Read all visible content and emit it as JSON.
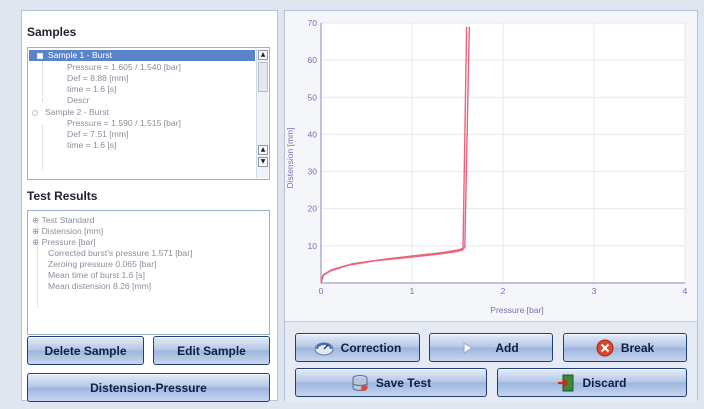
{
  "samples": {
    "title": "Samples",
    "rows": [
      "Sample 1 - Burst",
      "Pressure = 1.605 / 1.540 [bar]",
      "Def = 8.88 [mm]",
      "time = 1.6 [s]",
      "Descr",
      "Sample 2 - Burst",
      "Pressure = 1.590 / 1.515 [bar]",
      "Def = 7.51 [mm]",
      "time = 1.6 [s]"
    ]
  },
  "results": {
    "title": "Test Results",
    "rows": [
      "Test Standard",
      "Distension [mm]",
      "Pressure [bar]",
      "Corrected burst's pressure 1.571 [bar]",
      "Zeroing pressure 0.065 [bar]",
      "Mean time of burst 1.6 [s]",
      "Mean distension 8.26 [mm]"
    ]
  },
  "buttons": {
    "delete_sample": "Delete Sample",
    "edit_sample": "Edit Sample",
    "distension_pressure": "Distension-Pressure",
    "correction": "Correction",
    "add": "Add",
    "break": "Break",
    "save_test": "Save Test",
    "discard": "Discard"
  },
  "icons": {
    "correction": "gauge-icon",
    "add": "play-arrow-icon",
    "break": "stop-x-icon",
    "save_test": "database-icon",
    "discard": "exit-door-icon"
  },
  "colors": {
    "selection": "#5a83c9",
    "curve": "#e8647f",
    "button_border": "#1e3f78",
    "axis_label": "#7a6fb3"
  },
  "chart_data": {
    "type": "line",
    "xlabel": "Pressure [bar]",
    "ylabel": "Distension [mm]",
    "xlim": [
      0,
      4
    ],
    "ylim": [
      0,
      70
    ],
    "xticks": [
      0,
      1,
      2,
      3,
      4
    ],
    "yticks": [
      10,
      20,
      30,
      40,
      50,
      60,
      70
    ],
    "grid": true,
    "series": [
      {
        "values": [
          [
            0,
            0
          ],
          [
            0.02,
            2
          ],
          [
            0.1,
            3.2
          ],
          [
            0.3,
            4.8
          ],
          [
            0.6,
            6
          ],
          [
            1.0,
            7
          ],
          [
            1.3,
            7.8
          ],
          [
            1.5,
            8.5
          ],
          [
            1.56,
            9
          ],
          [
            1.6,
            69
          ]
        ]
      },
      {
        "values": [
          [
            0,
            0
          ],
          [
            0.03,
            2.3
          ],
          [
            0.12,
            3.6
          ],
          [
            0.35,
            5.2
          ],
          [
            0.7,
            6.4
          ],
          [
            1.05,
            7.4
          ],
          [
            1.35,
            8.2
          ],
          [
            1.52,
            9
          ],
          [
            1.58,
            9.5
          ],
          [
            1.63,
            69
          ]
        ]
      }
    ]
  }
}
